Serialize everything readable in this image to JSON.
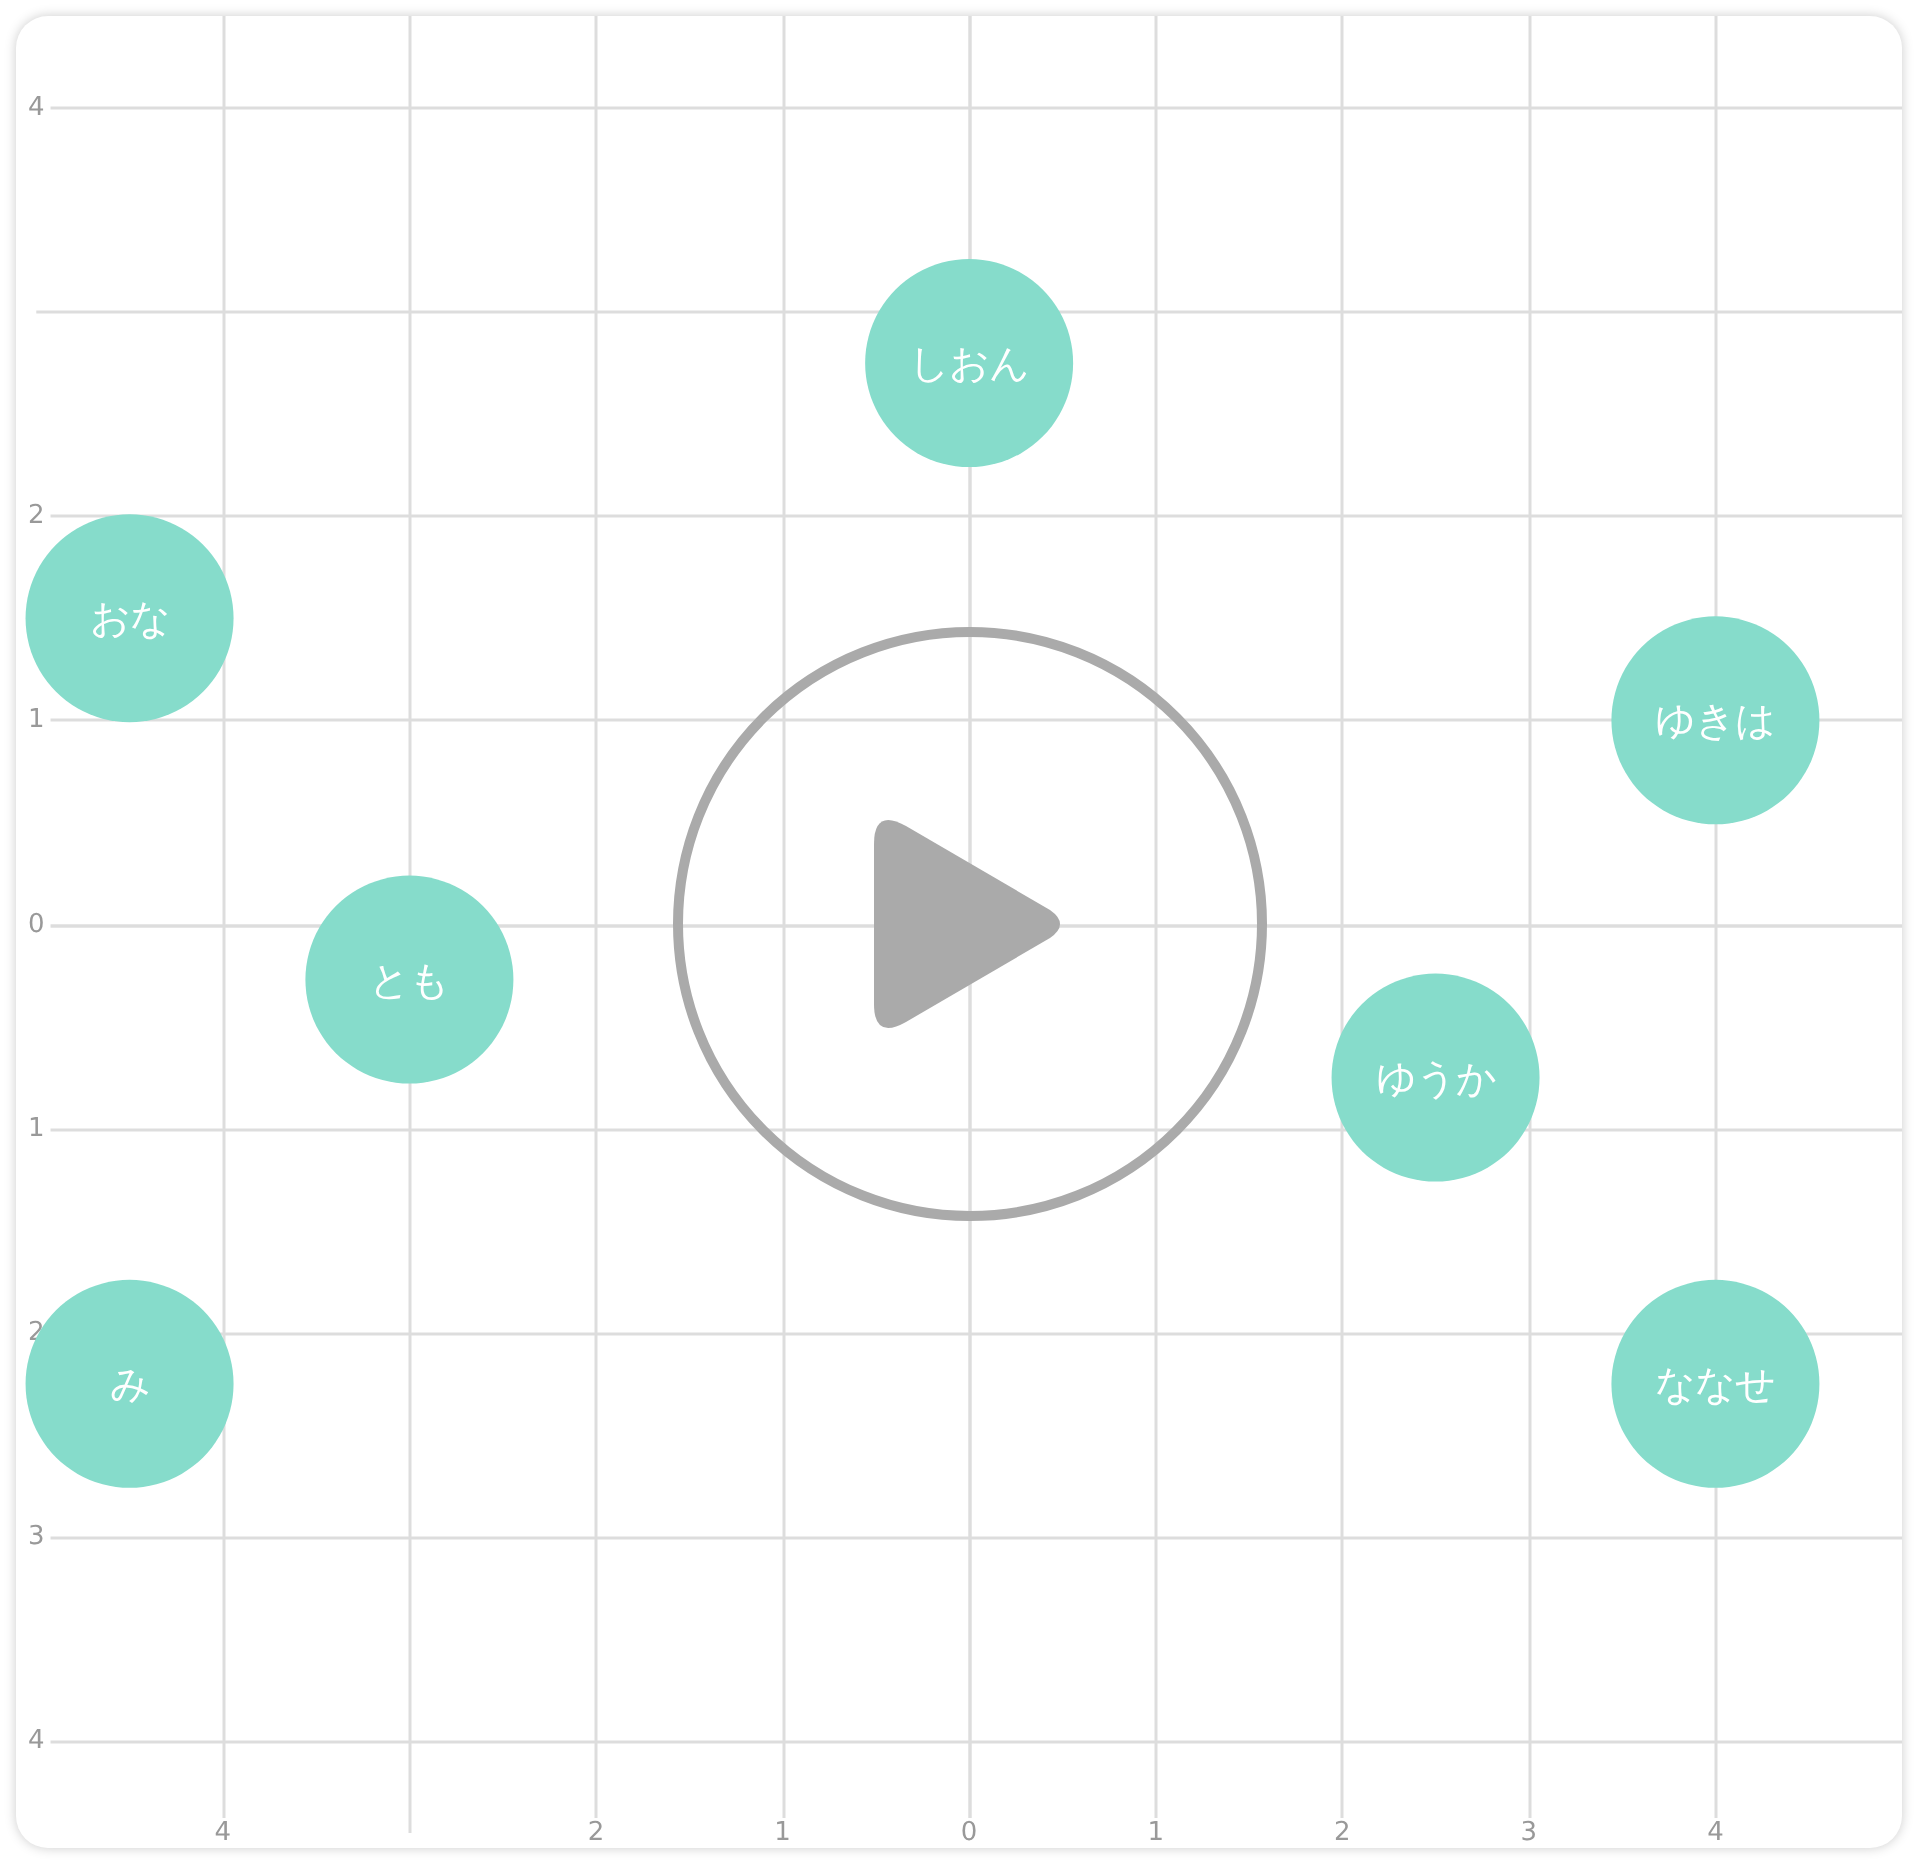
{
  "chart_data": {
    "type": "scatter",
    "x": [
      0,
      -4.5,
      4,
      -3,
      2.5,
      4,
      -4.5
    ],
    "values": [
      2.75,
      1.5,
      1,
      -0.27,
      -0.75,
      -2.25,
      -2.25
    ],
    "value_labels": [
      "しおん",
      "おな",
      "ゆきは",
      "とも",
      "ゆうか",
      "ななせ",
      "み"
    ],
    "color": "#86dccb",
    "marker": "circle",
    "grid": true,
    "xlim": [
      -5,
      5
    ],
    "ylim": [
      -4.45,
      4.45
    ],
    "xticks": [
      {
        "value": -4,
        "label": "4"
      },
      {
        "value": -3,
        "label": null
      },
      {
        "value": -2,
        "label": "2"
      },
      {
        "value": -1,
        "label": "1"
      },
      0,
      1,
      2,
      3,
      4
    ],
    "yticks": [
      4,
      {
        "value": 3,
        "label": null
      },
      2,
      1,
      0,
      {
        "value": -1,
        "label": "1"
      },
      {
        "value": -2,
        "label": "2"
      },
      {
        "value": -3,
        "label": "3"
      },
      {
        "value": -4,
        "label": "4"
      }
    ]
  }
}
